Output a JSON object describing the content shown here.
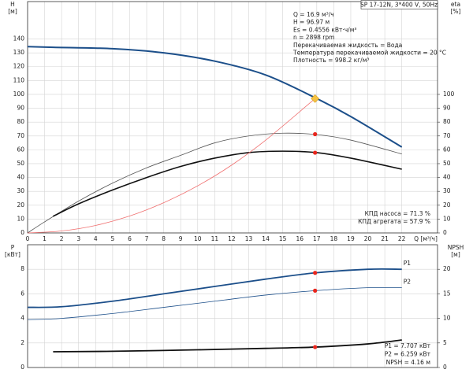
{
  "chart_data": [
    {
      "type": "line",
      "title": "SP 17-12N, 3*400 V, 50Hz",
      "info": [
        "Q = 16.9 м³/ч",
        "H = 96.97 м",
        "Es = 0.4556 кВт·ч/м³",
        "n = 2898 rpm",
        "Перекачиваемая жидкость = Вода",
        "Температура перекачиваемой жидкости = 20 °C",
        "Плотность = 998.2 кг/м³"
      ],
      "notes": [
        "КПД насоса = 71.3 %",
        "КПД агрегата = 57.9 %"
      ],
      "ylabel": "H",
      "yunit": "[м]",
      "y2label": "eta",
      "y2unit": "[%]",
      "xlabel": "Q [м³/ч]",
      "xlim": [
        0,
        24.1
      ],
      "xticks": [
        0,
        1,
        2,
        3,
        4,
        5,
        6,
        7,
        8,
        9,
        10,
        11,
        12,
        13,
        14,
        15,
        16,
        17,
        18,
        19,
        20,
        21,
        22
      ],
      "ylim": [
        0,
        167
      ],
      "yticks": [
        0,
        10,
        20,
        30,
        40,
        50,
        60,
        70,
        80,
        90,
        100,
        110,
        120,
        130,
        140
      ],
      "y2lim": [
        0,
        167
      ],
      "y2ticks": [
        0,
        10,
        20,
        30,
        40,
        50,
        60,
        70,
        80,
        90,
        100
      ],
      "grid": true,
      "show_xtick_labels": true,
      "series": [
        {
          "color": "#1c4f8a",
          "linewidth": 2,
          "x": [
            0,
            1.5,
            5,
            8,
            11,
            14,
            17,
            19,
            22
          ],
          "values": [
            134.5,
            134,
            133,
            130,
            124,
            114,
            97,
            84,
            62
          ]
        },
        {
          "color": "#555555",
          "linewidth": 0.8,
          "axis": "y2",
          "x": [
            0,
            1,
            3,
            5,
            7,
            9,
            11,
            13,
            15,
            17,
            19,
            22
          ],
          "values": [
            0,
            8,
            23,
            36,
            47,
            56,
            65,
            70,
            72,
            71,
            67,
            57
          ]
        },
        {
          "color": "#111111",
          "linewidth": 1.6,
          "axis": "y2",
          "x": [
            1.5,
            3,
            5,
            7,
            9,
            11,
            13,
            15,
            17,
            19,
            22
          ],
          "values": [
            12,
            21,
            31,
            40,
            48,
            54,
            58,
            59,
            58,
            54,
            46
          ]
        },
        {
          "color": "#f07070",
          "linewidth": 0.8,
          "x": [
            0,
            2,
            4,
            6,
            8,
            10,
            12,
            14,
            16.9
          ],
          "values": [
            0,
            1.4,
            5.4,
            12.2,
            21.8,
            34,
            49,
            67,
            96.97
          ]
        }
      ],
      "points": [
        {
          "x": 16.9,
          "y": 96.97,
          "color": "#f5c242",
          "marker": "diamond"
        },
        {
          "x": 16.9,
          "y": 71.3,
          "axis": "y2",
          "color": "#e8251c",
          "marker": "circle"
        },
        {
          "x": 16.9,
          "y": 57.9,
          "axis": "y2",
          "color": "#e8251c",
          "marker": "circle"
        }
      ]
    },
    {
      "type": "line",
      "notes": [
        "P1 = 7.707 кВт",
        "P2 = 6.259 кВт",
        "NPSH = 4.16 м"
      ],
      "ylabel": "P",
      "yunit": "[кВт]",
      "y2label": "NPSH",
      "y2unit": "[м]",
      "xlim": [
        0,
        24.1
      ],
      "xticks": [
        0,
        1,
        2,
        3,
        4,
        5,
        6,
        7,
        8,
        9,
        10,
        11,
        12,
        13,
        14,
        15,
        16,
        17,
        18,
        19,
        20,
        21,
        22
      ],
      "ylim": [
        0,
        10
      ],
      "yticks": [
        0,
        2,
        4,
        6,
        8
      ],
      "y2lim": [
        0,
        25
      ],
      "y2ticks": [
        0,
        5,
        10,
        15,
        20
      ],
      "grid": true,
      "show_xtick_labels": false,
      "series": [
        {
          "name": "P1",
          "color": "#1c4f8a",
          "linewidth": 1.8,
          "x": [
            0,
            2,
            5,
            8,
            11,
            14,
            16.9,
            20,
            22
          ],
          "values": [
            4.9,
            4.95,
            5.4,
            6.0,
            6.6,
            7.2,
            7.707,
            8.0,
            8.0
          ]
        },
        {
          "name": "P2",
          "color": "#1c4f8a",
          "linewidth": 0.8,
          "x": [
            0,
            2,
            5,
            8,
            11,
            14,
            16.9,
            20,
            22
          ],
          "values": [
            3.9,
            4.0,
            4.4,
            4.9,
            5.4,
            5.9,
            6.259,
            6.5,
            6.5
          ]
        },
        {
          "color": "#111111",
          "linewidth": 1.8,
          "axis": "y2",
          "x": [
            1.5,
            5,
            10,
            14,
            16.9,
            20,
            22
          ],
          "values": [
            3.2,
            3.3,
            3.6,
            3.9,
            4.16,
            4.8,
            5.6
          ]
        }
      ],
      "points": [
        {
          "x": 16.9,
          "y": 7.707,
          "color": "#e8251c",
          "marker": "circle"
        },
        {
          "x": 16.9,
          "y": 6.259,
          "color": "#e8251c",
          "marker": "circle"
        },
        {
          "x": 16.9,
          "y": 4.16,
          "axis": "y2",
          "color": "#e8251c",
          "marker": "circle"
        }
      ]
    }
  ]
}
